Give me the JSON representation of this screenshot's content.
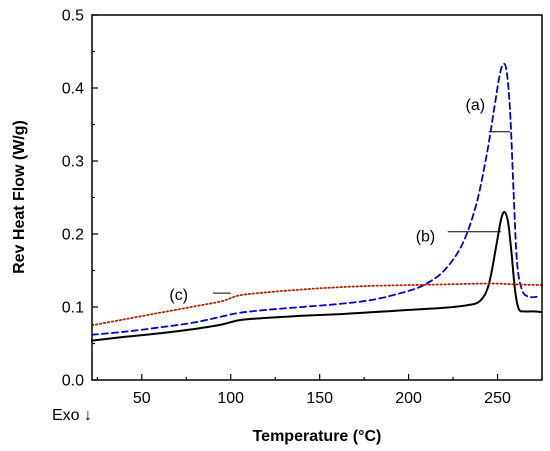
{
  "chart_data": {
    "type": "line",
    "xlabel": "Temperature (°C)",
    "ylabel": "Rev Heat Flow (W/g)",
    "xlim": [
      22,
      275
    ],
    "ylim": [
      0,
      0.5
    ],
    "xticks": [
      50,
      100,
      150,
      200,
      250
    ],
    "xtick_labels": [
      "50",
      "100",
      "150",
      "200",
      "250"
    ],
    "yticks": [
      0.0,
      0.1,
      0.2,
      0.3,
      0.4,
      0.5
    ],
    "ytick_labels": [
      "0.0",
      "0.1",
      "0.2",
      "0.3",
      "0.4",
      "0.5"
    ],
    "corner_note": "Exo ↓",
    "grid": false,
    "series": [
      {
        "name": "(a)",
        "color": "#0000cc",
        "style": "dashed",
        "x": [
          22,
          40,
          60,
          80,
          95,
          105,
          120,
          140,
          160,
          180,
          200,
          210,
          220,
          230,
          238,
          244,
          248,
          251,
          253,
          255,
          257,
          259,
          261,
          264,
          268,
          272
        ],
        "y": [
          0.062,
          0.066,
          0.072,
          0.079,
          0.087,
          0.092,
          0.096,
          0.1,
          0.104,
          0.11,
          0.122,
          0.132,
          0.15,
          0.185,
          0.24,
          0.31,
          0.37,
          0.415,
          0.432,
          0.425,
          0.37,
          0.26,
          0.16,
          0.122,
          0.114,
          0.114
        ]
      },
      {
        "name": "(b)",
        "color": "#000000",
        "style": "solid",
        "x": [
          22,
          40,
          60,
          80,
          95,
          105,
          120,
          140,
          160,
          180,
          200,
          220,
          232,
          240,
          245,
          249,
          252,
          254,
          256,
          258,
          260,
          262,
          265,
          270,
          275
        ],
        "y": [
          0.054,
          0.059,
          0.064,
          0.07,
          0.076,
          0.082,
          0.085,
          0.088,
          0.09,
          0.093,
          0.096,
          0.099,
          0.102,
          0.108,
          0.13,
          0.18,
          0.22,
          0.23,
          0.215,
          0.17,
          0.12,
          0.097,
          0.094,
          0.094,
          0.093
        ]
      },
      {
        "name": "(c)",
        "color": "#b22200",
        "style": "dotted",
        "x": [
          22,
          40,
          60,
          80,
          95,
          105,
          120,
          140,
          160,
          180,
          200,
          220,
          240,
          250,
          260,
          275
        ],
        "y": [
          0.075,
          0.083,
          0.092,
          0.101,
          0.108,
          0.116,
          0.12,
          0.124,
          0.127,
          0.129,
          0.13,
          0.131,
          0.132,
          0.132,
          0.131,
          0.13
        ]
      }
    ],
    "annotations": [
      {
        "text": "(a)",
        "series": "(a)",
        "label_x": 243,
        "label_y": 0.378,
        "line_x1": 245,
        "line_x2": 257,
        "line_y": 0.34
      },
      {
        "text": "(b)",
        "series": "(b)",
        "label_x": 215,
        "label_y": 0.198,
        "line_x1": 222,
        "line_x2": 252,
        "line_y": 0.203
      },
      {
        "text": "(c)",
        "series": "(c)",
        "label_x": 76,
        "label_y": 0.118,
        "line_x1": 90,
        "line_x2": 100,
        "line_y": 0.119
      }
    ]
  }
}
